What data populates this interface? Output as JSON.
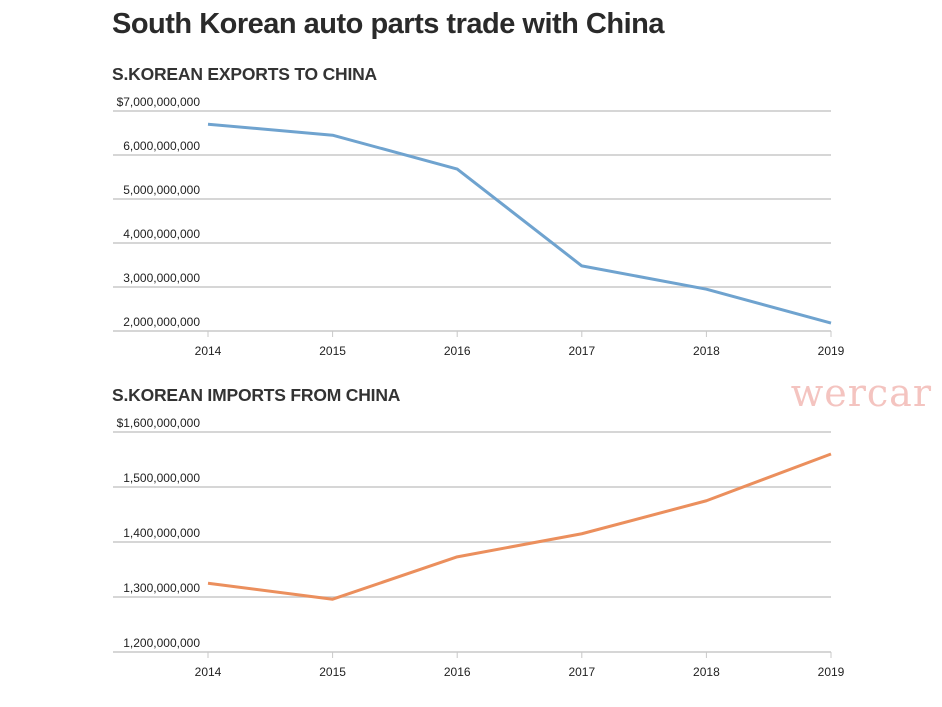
{
  "title": "South Korean auto parts trade with China",
  "watermark": "wercar",
  "chart_data": [
    {
      "type": "line",
      "title": "S.KOREAN EXPORTS TO CHINA",
      "x": [
        "2014",
        "2015",
        "2016",
        "2017",
        "2018",
        "2019"
      ],
      "values": [
        6700000000,
        6450000000,
        5680000000,
        3480000000,
        2950000000,
        2180000000
      ],
      "ylim": [
        2000000000,
        7000000000
      ],
      "yticks": [
        7000000000,
        6000000000,
        5000000000,
        4000000000,
        3000000000,
        2000000000
      ],
      "ytick_labels": [
        "$7,000,000,000",
        "6,000,000,000",
        "5,000,000,000",
        "4,000,000,000",
        "3,000,000,000",
        "2,000,000,000"
      ],
      "color": "#6fa3cf",
      "grid": true
    },
    {
      "type": "line",
      "title": "S.KOREAN IMPORTS FROM CHINA",
      "x": [
        "2014",
        "2015",
        "2016",
        "2017",
        "2018",
        "2019"
      ],
      "values": [
        1325000000,
        1296000000,
        1373000000,
        1415000000,
        1475000000,
        1560000000
      ],
      "ylim": [
        1200000000,
        1600000000
      ],
      "yticks": [
        1600000000,
        1500000000,
        1400000000,
        1300000000,
        1200000000
      ],
      "ytick_labels": [
        "$1,600,000,000",
        "1,500,000,000",
        "1,400,000,000",
        "1,300,000,000",
        "1,200,000,000"
      ],
      "color": "#eb8f5d",
      "grid": true
    }
  ]
}
